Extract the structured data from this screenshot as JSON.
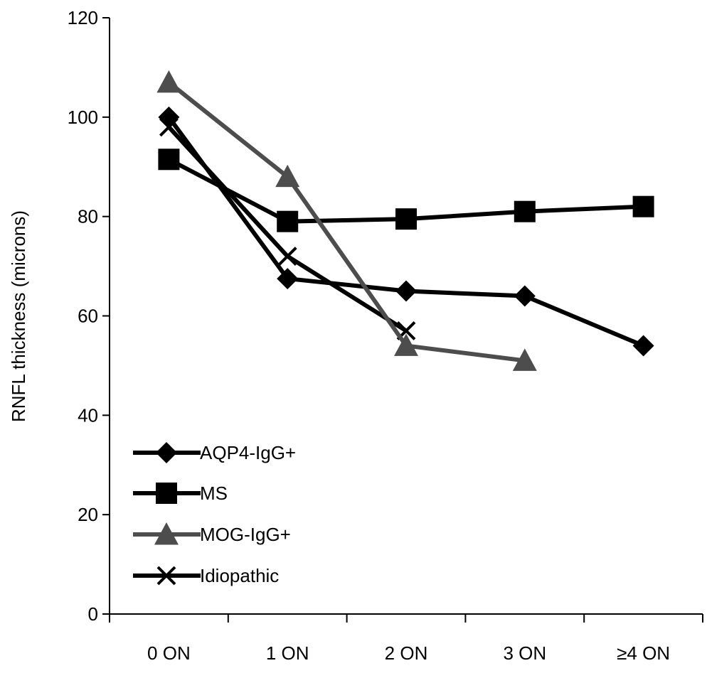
{
  "chart_data": {
    "type": "line",
    "title": "",
    "xlabel": "",
    "ylabel": "RNFL thickness (microns)",
    "ylim": [
      0,
      120
    ],
    "yticks": [
      "0",
      "20",
      "40",
      "60",
      "80",
      "100",
      "120"
    ],
    "categories": [
      "0 ON",
      "1 ON",
      "2 ON",
      "3 ON",
      "≥4 ON"
    ],
    "grid": false,
    "legend": "bottom-left",
    "series": [
      {
        "name": "AQP4-IgG+",
        "marker": "diamond",
        "color": "#000000",
        "values": [
          100,
          67.5,
          65,
          64,
          54
        ]
      },
      {
        "name": "MS",
        "marker": "square",
        "color": "#000000",
        "values": [
          91.5,
          79,
          79.5,
          81,
          82
        ]
      },
      {
        "name": "MOG-IgG+",
        "marker": "triangle",
        "color": "#4d4d4d",
        "values": [
          107,
          88,
          54,
          51,
          null
        ]
      },
      {
        "name": "Idiopathic",
        "marker": "x",
        "color": "#000000",
        "values": [
          98,
          72,
          57,
          null,
          null
        ]
      }
    ]
  }
}
